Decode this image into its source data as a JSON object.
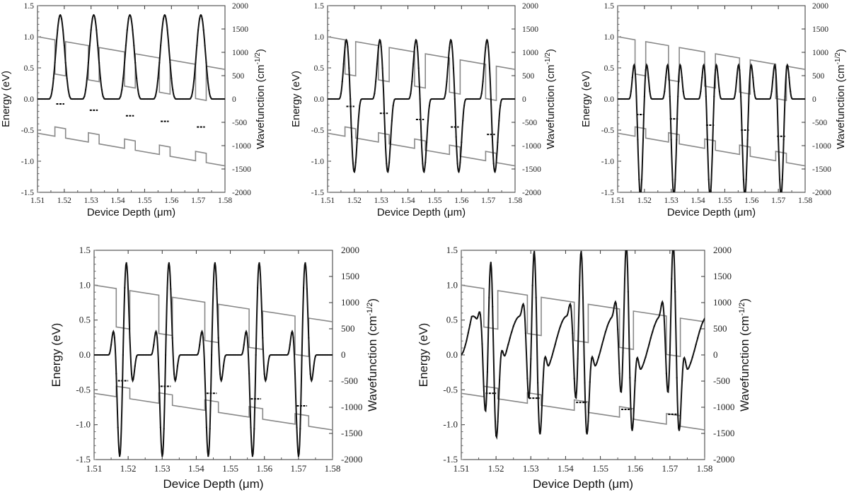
{
  "figure": {
    "background": "#ffffff"
  },
  "chart_data": [
    {
      "type": "line",
      "panel": "top-left",
      "xlabel": "Device Depth (μm)",
      "ylabel": "Energy (eV)",
      "y2label": "Wavefunction (cm",
      "y2label_sup": "-1/2",
      "y2label_close": ")",
      "xlim": [
        1.51,
        1.58
      ],
      "ylim": [
        -1.5,
        1.5
      ],
      "y2lim": [
        -2000,
        2000
      ],
      "xticks": [
        "1.51",
        "1.52",
        "1.53",
        "1.54",
        "1.55",
        "1.56",
        "1.57",
        "1.58"
      ],
      "yticks": [
        "1.5",
        "1.0",
        "0.5",
        "0.0",
        "-0.5",
        "-1.0",
        "-1.5"
      ],
      "y2ticks": [
        "2000",
        "1500",
        "1000",
        "500",
        "0",
        "-500",
        "-1000",
        "-1500",
        "-2000"
      ],
      "band_color": "#888888",
      "wave_color": "#111111",
      "cb_offset": 1.0,
      "vb_offset": -0.4,
      "band_slope": -7.5,
      "barrier_step": 0.55,
      "wells": [
        [
          1.5165,
          1.5205
        ],
        [
          1.529,
          1.533
        ],
        [
          1.5425,
          1.5465
        ],
        [
          1.5555,
          1.5595
        ],
        [
          1.569,
          1.573
        ]
      ],
      "wave_mode": "ground",
      "wave_amp": 1800,
      "levels": [
        [
          1.5165,
          1.5205,
          -0.08
        ],
        [
          1.529,
          1.533,
          -0.18
        ],
        [
          1.5425,
          1.5465,
          -0.27
        ],
        [
          1.5555,
          1.5595,
          -0.36
        ],
        [
          1.569,
          1.573,
          -0.45
        ]
      ]
    },
    {
      "type": "line",
      "panel": "top-middle",
      "xlabel": "Device Depth (μm)",
      "ylabel": "Energy (eV)",
      "y2label": "Wavefunction (cm",
      "y2label_sup": "-1/2",
      "y2label_close": ")",
      "xlim": [
        1.51,
        1.58
      ],
      "ylim": [
        -1.5,
        1.5
      ],
      "y2lim": [
        -2000,
        2000
      ],
      "xticks": [
        "1.51",
        "1.52",
        "1.53",
        "1.54",
        "1.55",
        "1.56",
        "1.57",
        "1.58"
      ],
      "yticks": [
        "1.5",
        "1.0",
        "0.5",
        "0.0",
        "-0.5",
        "-1.0",
        "-1.5"
      ],
      "y2ticks": [
        "2000",
        "1500",
        "1000",
        "500",
        "0",
        "-500",
        "-1000",
        "-1500",
        "-2000"
      ],
      "band_color": "#888888",
      "wave_color": "#111111",
      "cb_offset": 1.0,
      "vb_offset": -0.4,
      "band_slope": -7.5,
      "barrier_step": 0.55,
      "wells": [
        [
          1.5165,
          1.5205
        ],
        [
          1.529,
          1.533
        ],
        [
          1.5425,
          1.5465
        ],
        [
          1.5555,
          1.5595
        ],
        [
          1.569,
          1.573
        ]
      ],
      "wave_mode": "first",
      "wave_amp": 1500,
      "wave_amp_neg": 1850,
      "levels": [
        [
          1.5165,
          1.5205,
          -0.12
        ],
        [
          1.529,
          1.533,
          -0.23
        ],
        [
          1.5425,
          1.5465,
          -0.33
        ],
        [
          1.5555,
          1.5595,
          -0.45
        ],
        [
          1.569,
          1.573,
          -0.57
        ]
      ]
    },
    {
      "type": "line",
      "panel": "top-right",
      "xlabel": "Device Depth (μm)",
      "ylabel": "Energy (eV)",
      "y2label": "Wavefunction (cm",
      "y2label_sup": "-1/2",
      "y2label_close": ")",
      "xlim": [
        1.51,
        1.58
      ],
      "ylim": [
        -1.5,
        1.5
      ],
      "y2lim": [
        -2000,
        2000
      ],
      "xticks": [
        "1.51",
        "1.52",
        "1.53",
        "1.54",
        "1.55",
        "1.56",
        "1.57",
        "1.58"
      ],
      "yticks": [
        "1.5",
        "1.0",
        "0.5",
        "0.0",
        "-0.5",
        "-1.0",
        "-1.5"
      ],
      "y2ticks": [
        "2000",
        "1500",
        "1000",
        "500",
        "0",
        "-500",
        "-1000",
        "-1500",
        "-2000"
      ],
      "band_color": "#888888",
      "wave_color": "#111111",
      "cb_offset": 1.0,
      "vb_offset": -0.4,
      "band_slope": -7.5,
      "barrier_step": 0.55,
      "wells": [
        [
          1.5165,
          1.5205
        ],
        [
          1.529,
          1.533
        ],
        [
          1.5425,
          1.5465
        ],
        [
          1.5555,
          1.5595
        ],
        [
          1.569,
          1.573
        ]
      ],
      "wave_mode": "second",
      "wave_amp": 1750,
      "wave_amp_neg": 1800,
      "levels": [
        [
          1.5165,
          1.5205,
          -0.25
        ],
        [
          1.529,
          1.533,
          -0.32
        ],
        [
          1.5425,
          1.5465,
          -0.42
        ],
        [
          1.5555,
          1.5595,
          -0.5
        ],
        [
          1.569,
          1.573,
          -0.6
        ]
      ]
    },
    {
      "type": "line",
      "panel": "bottom-left",
      "xlabel": "Device Depth (μm)",
      "ylabel": "Energy (eV)",
      "y2label": "Wavefunction (cm",
      "y2label_sup": "-1/2",
      "y2label_close": ")",
      "xlim": [
        1.51,
        1.58
      ],
      "ylim": [
        -1.5,
        1.5
      ],
      "y2lim": [
        -2000,
        2000
      ],
      "xticks": [
        "1.51",
        "1.52",
        "1.53",
        "1.54",
        "1.55",
        "1.56",
        "1.57",
        "1.58"
      ],
      "yticks": [
        "1.5",
        "1.0",
        "0.5",
        "0.0",
        "-0.5",
        "-1.0",
        "-1.5"
      ],
      "y2ticks": [
        "2000",
        "1500",
        "1000",
        "500",
        "0",
        "-500",
        "-1000",
        "-1500",
        "-2000"
      ],
      "band_color": "#888888",
      "wave_color": "#111111",
      "cb_offset": 1.0,
      "vb_offset": -0.4,
      "band_slope": -7.5,
      "barrier_step": 0.55,
      "wells": [
        [
          1.5165,
          1.5205
        ],
        [
          1.529,
          1.533
        ],
        [
          1.5425,
          1.5465
        ],
        [
          1.5555,
          1.5595
        ],
        [
          1.569,
          1.573
        ]
      ],
      "wave_mode": "third",
      "wave_amp": 1500,
      "wave_amp_neg": 1650,
      "levels": [
        [
          1.5165,
          1.5205,
          -0.37
        ],
        [
          1.529,
          1.533,
          -0.45
        ],
        [
          1.5425,
          1.5465,
          -0.55
        ],
        [
          1.5555,
          1.5595,
          -0.63
        ],
        [
          1.569,
          1.573,
          -0.73
        ]
      ]
    },
    {
      "type": "line",
      "panel": "bottom-right",
      "xlabel": "Device Depth (μm)",
      "ylabel": "Energy (eV)",
      "y2label": "Wavefunction (cm",
      "y2label_sup": "-1/2",
      "y2label_close": ")",
      "xlim": [
        1.51,
        1.58
      ],
      "ylim": [
        -1.5,
        1.5
      ],
      "y2lim": [
        -2000,
        2000
      ],
      "xticks": [
        "1.51",
        "1.52",
        "1.53",
        "1.54",
        "1.55",
        "1.56",
        "1.57",
        "1.58"
      ],
      "yticks": [
        "1.5",
        "1.0",
        "0.5",
        "0.0",
        "-0.5",
        "-1.0",
        "-1.5"
      ],
      "y2ticks": [
        "2000",
        "1500",
        "1000",
        "500",
        "0",
        "-500",
        "-1000",
        "-1500",
        "-2000"
      ],
      "band_color": "#888888",
      "wave_color": "#111111",
      "cb_offset": 1.0,
      "vb_offset": -0.4,
      "band_slope": -7.5,
      "barrier_step": 0.55,
      "wells": [
        [
          1.5165,
          1.5205
        ],
        [
          1.529,
          1.533
        ],
        [
          1.5425,
          1.5465
        ],
        [
          1.5555,
          1.5595
        ],
        [
          1.569,
          1.573
        ]
      ],
      "wave_mode": "fourth",
      "wave_amp": 1400,
      "wave_amp_neg": 1300,
      "levels": [
        [
          1.5165,
          1.5205,
          -0.55
        ],
        [
          1.529,
          1.533,
          -0.62
        ],
        [
          1.5425,
          1.5465,
          -0.68
        ],
        [
          1.5555,
          1.5595,
          -0.78
        ],
        [
          1.569,
          1.573,
          -0.85
        ]
      ]
    }
  ]
}
